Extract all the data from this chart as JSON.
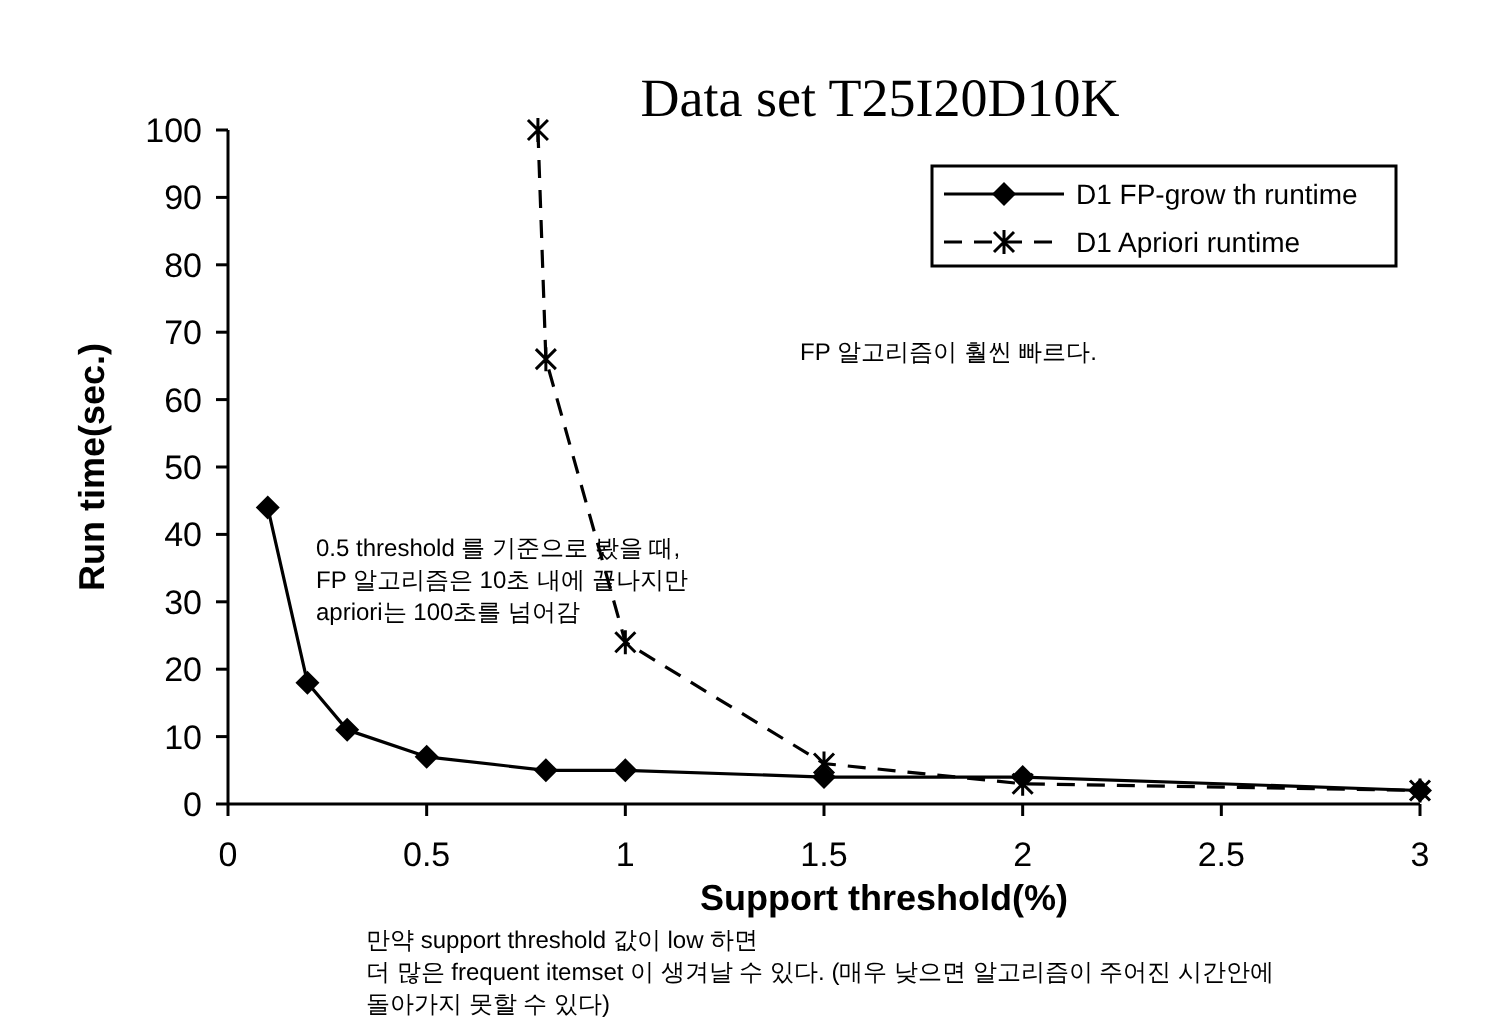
{
  "chart_data": {
    "type": "line",
    "title": "Data set T25I20D10K",
    "xlabel": "Support threshold(%)",
    "ylabel": "Run time(sec.)",
    "xlim": [
      0,
      3
    ],
    "xticks": [
      0,
      0.5,
      1,
      1.5,
      2,
      2.5,
      3
    ],
    "ylim": [
      0,
      100
    ],
    "yticks": [
      0,
      10,
      20,
      30,
      40,
      50,
      60,
      70,
      80,
      90,
      100
    ],
    "legend": "top right",
    "grid": false,
    "series": [
      {
        "name": "D1 FP-grow th runtime",
        "color": "#000000",
        "marker": "diamond",
        "line_style": "solid",
        "x": [
          0.1,
          0.2,
          0.3,
          0.5,
          0.8,
          1,
          1.5,
          2,
          3
        ],
        "values": [
          44,
          18,
          11,
          7,
          5,
          5,
          4,
          4,
          2
        ]
      },
      {
        "name": "D1 Apriori runtime",
        "color": "#000000",
        "marker": "cross",
        "line_style": "dashed",
        "x": [
          0.78,
          0.8,
          1,
          1.5,
          2,
          3
        ],
        "values": [
          100,
          66,
          24,
          6,
          3,
          2
        ]
      }
    ],
    "annotations": [
      "FP 알고리즘이 훨씬 빠르다.",
      "0.5 threshold 를 기준으로 봤을 때,\nFP 알고리즘은 10초 내에 끝나지만\napriori는 100초를 넘어감",
      "만약 support threshold 값이 low 하면\n더 많은 frequent itemset 이 생겨날 수 있다. (매우 낮으면 알고리즘이 주어진 시간안에\n돌아가지 못할 수 있다)"
    ]
  }
}
